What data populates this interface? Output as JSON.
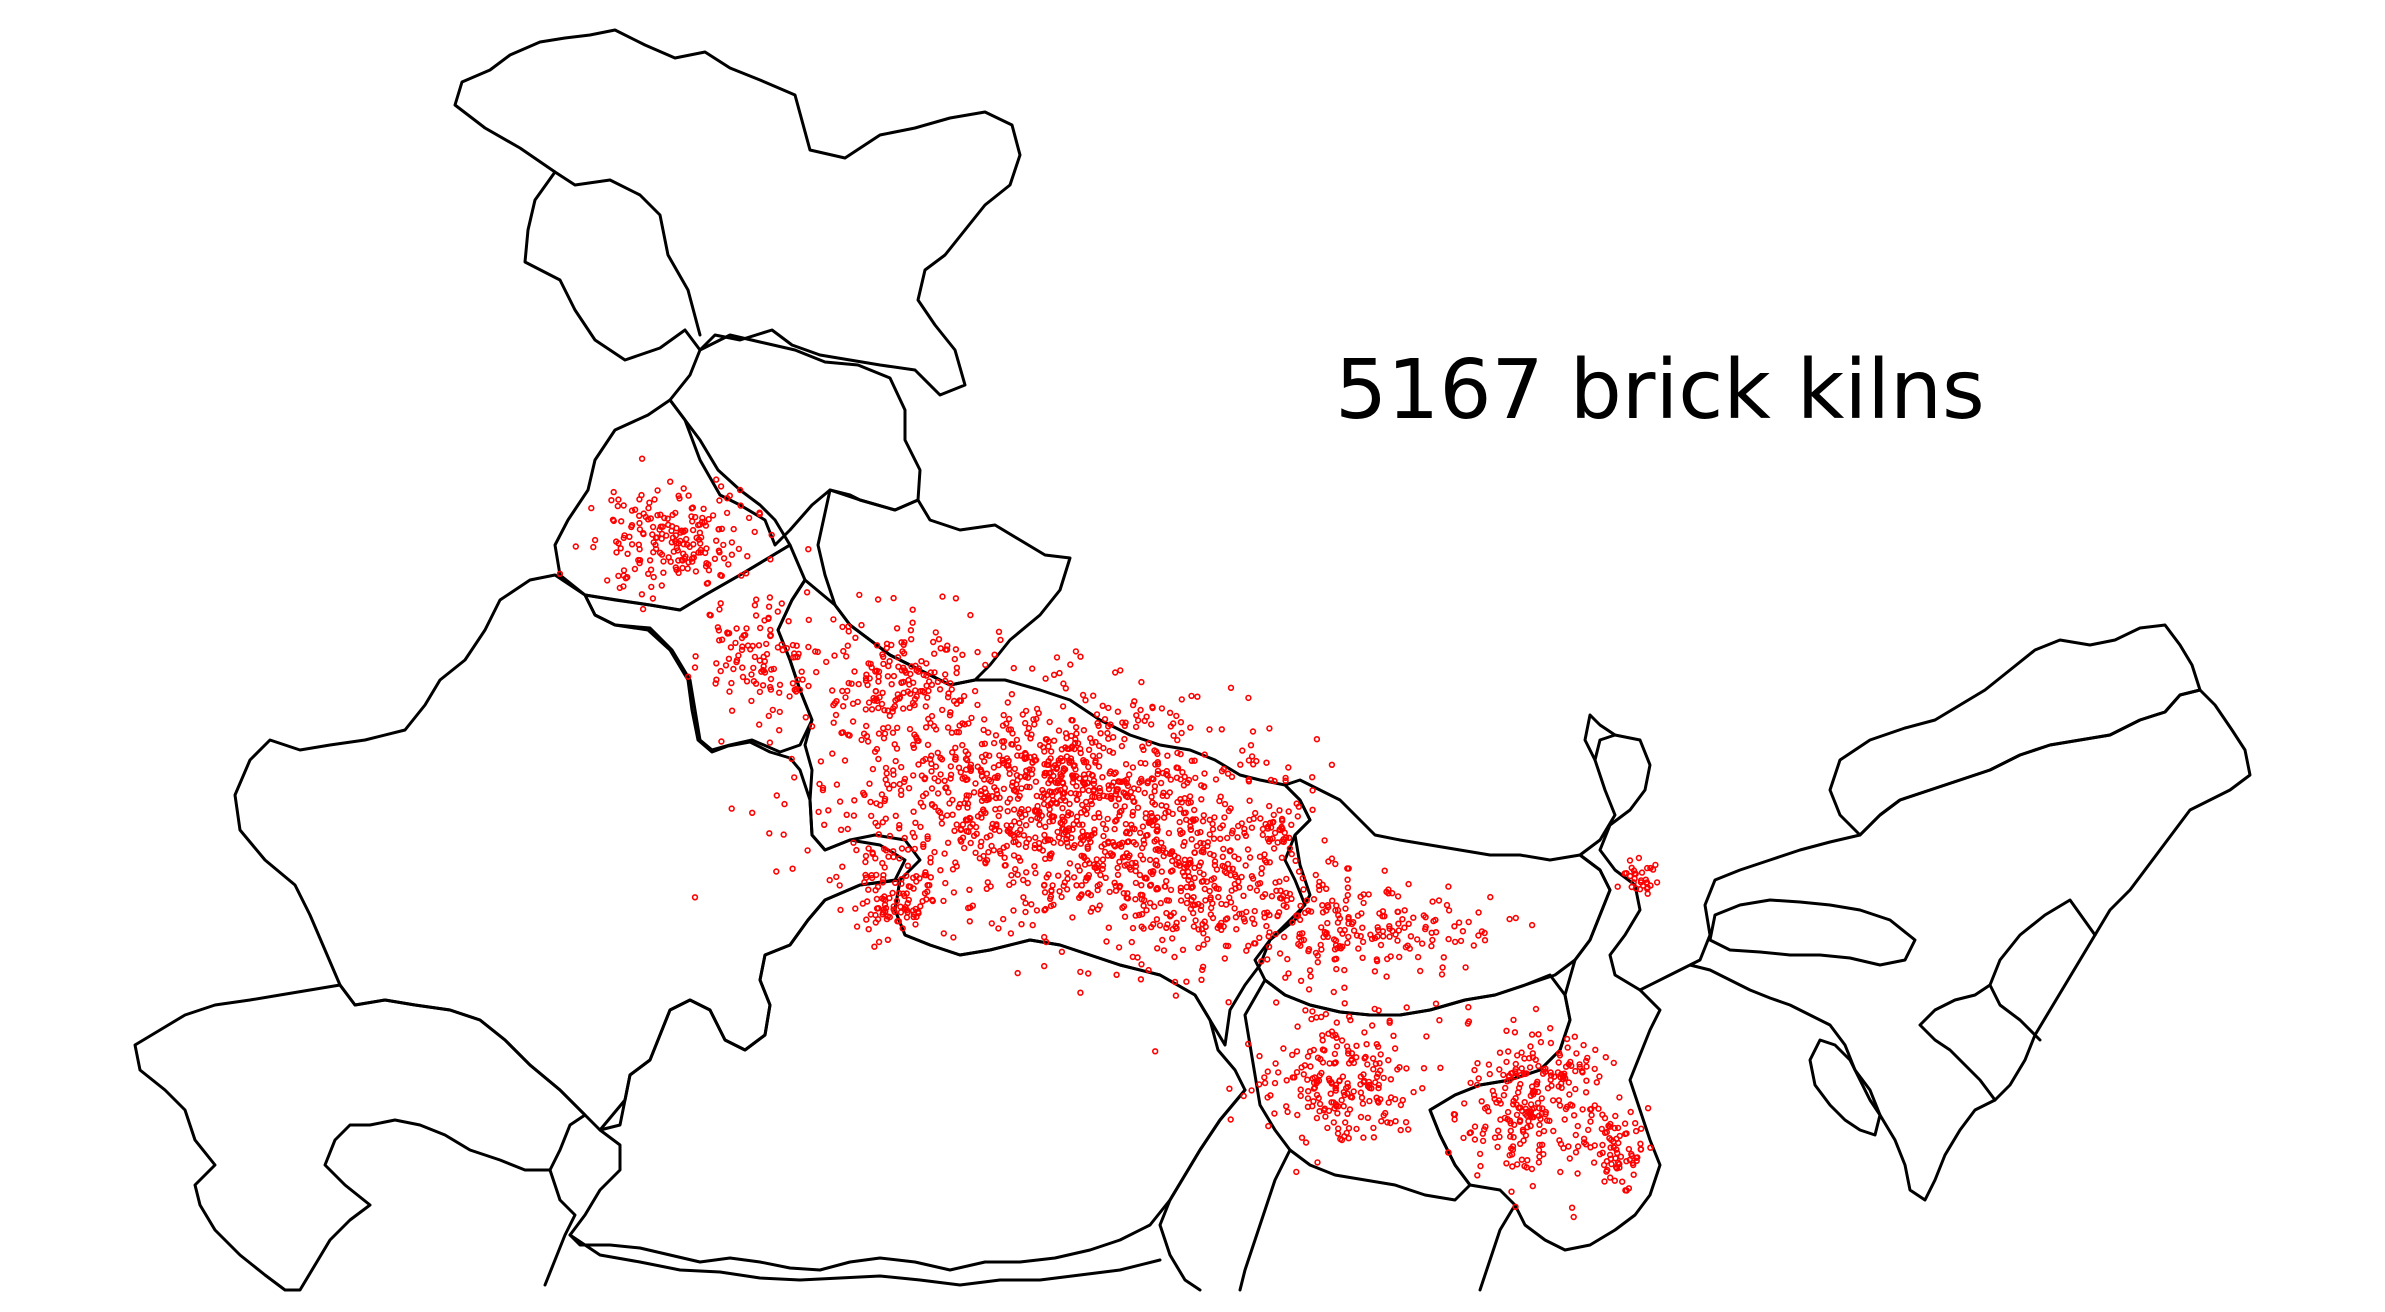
{
  "map": {
    "title": "5167 brick kilns",
    "kiln_count": 5167,
    "marker_color": "#ff0000",
    "boundary_color": "#000000",
    "background_color": "#ffffff",
    "legend": "none",
    "axes": "off"
  }
}
